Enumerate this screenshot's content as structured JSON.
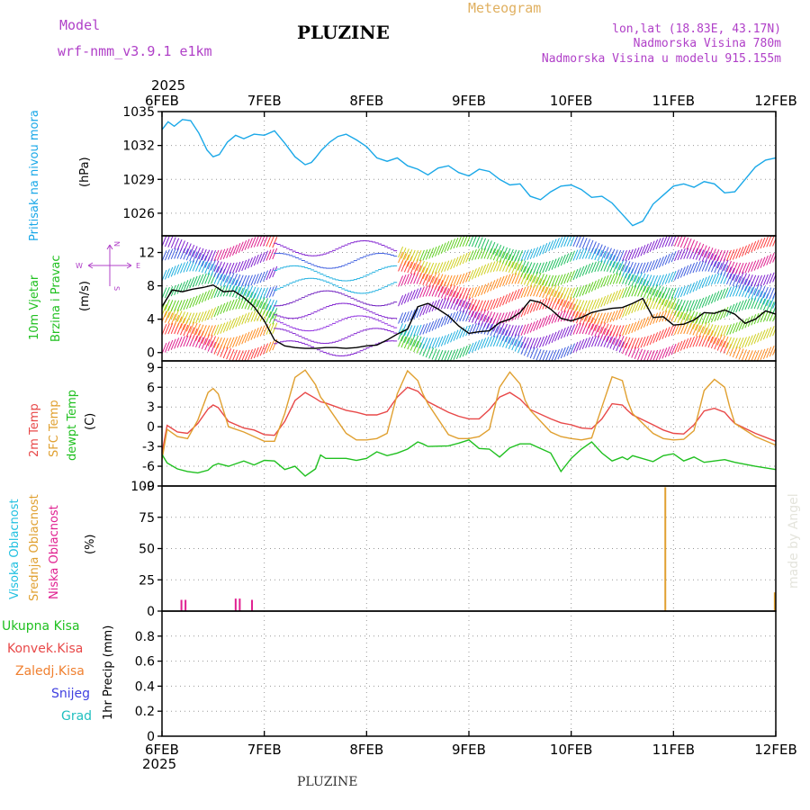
{
  "header": {
    "model_label": "Model",
    "model_name": "wrf-nmm_v3.9.1 e1km",
    "station": "PLUZINE",
    "product": "Meteogram",
    "coords": "lon,lat (18.83E, 43.17N)",
    "elevation": "Nadmorska Visina 780m",
    "model_elevation": "Nadmorska Visina u modelu 915.155m"
  },
  "footer": {
    "station": "PLUZINE"
  },
  "watermark": "made by Angel",
  "time_axis": {
    "year": "2025",
    "days": [
      "6FEB",
      "7FEB",
      "8FEB",
      "9FEB",
      "10FEB",
      "11FEB",
      "12FEB"
    ],
    "day_index": [
      0,
      1,
      2,
      3,
      4,
      5,
      6
    ]
  },
  "panel_labels": {
    "pressure": [
      "Pritisak na nivou mora",
      "(hPa)"
    ],
    "wind": [
      "10m Vjetar",
      "Brzina i Pravac",
      "(m/s)"
    ],
    "wind_dir": {
      "n": "N",
      "s": "S",
      "e": "E",
      "w": "W"
    },
    "temp": [
      "2m Temp",
      "SFC Temp",
      "dewpt Temp",
      "(C)"
    ],
    "cloud": [
      "Visoka Oblacnost",
      "Srednja Oblacnost",
      "Niska Oblacnost",
      "(%)"
    ],
    "precip_legend": [
      "Ukupna Kisa",
      "Konvek.Kisa",
      "Zaledj.Kisa",
      "Snijeg",
      "Grad"
    ],
    "precip_axis": "1hr Precip (mm)"
  },
  "colors": {
    "pressure": "#1aa8e8",
    "wind_speed": "#000000",
    "t2m": "#e84848",
    "tsfc": "#e0a030",
    "dewpoint": "#20c020",
    "high_cloud": "#20c0e0",
    "mid_cloud": "#e0a030",
    "low_cloud": "#e02090",
    "total_rain": "#20c020",
    "conv_rain": "#e84848",
    "freezing_rain": "#f08030",
    "snow": "#4040e0",
    "hail": "#20c0c0",
    "axis_purple": "#b040c8"
  },
  "chart_data": [
    {
      "type": "line",
      "name": "pressure",
      "ylim": [
        1024,
        1035
      ],
      "yticks": [
        1026,
        1029,
        1032,
        1035
      ],
      "x": [
        0,
        0.06,
        0.12,
        0.2,
        0.28,
        0.36,
        0.44,
        0.5,
        0.56,
        0.64,
        0.72,
        0.8,
        0.9,
        1.0,
        1.1,
        1.2,
        1.3,
        1.4,
        1.46,
        1.5,
        1.56,
        1.64,
        1.72,
        1.8,
        1.9,
        2.0,
        2.1,
        2.2,
        2.3,
        2.4,
        2.5,
        2.6,
        2.7,
        2.8,
        2.9,
        3.0,
        3.1,
        3.2,
        3.3,
        3.4,
        3.5,
        3.6,
        3.7,
        3.8,
        3.9,
        4.0,
        4.1,
        4.2,
        4.3,
        4.4,
        4.5,
        4.6,
        4.7,
        4.8,
        4.9,
        5.0,
        5.1,
        5.2,
        5.3,
        5.4,
        5.5,
        5.6,
        5.7,
        5.8,
        5.9,
        6.0
      ],
      "values": [
        1033.4,
        1034.1,
        1033.7,
        1034.3,
        1034.2,
        1033.1,
        1031.6,
        1031.0,
        1031.2,
        1032.3,
        1032.9,
        1032.6,
        1033.0,
        1032.9,
        1033.3,
        1032.2,
        1031.0,
        1030.3,
        1030.5,
        1030.9,
        1031.6,
        1032.3,
        1032.8,
        1033.0,
        1032.5,
        1031.9,
        1030.9,
        1030.6,
        1030.9,
        1030.2,
        1029.9,
        1029.4,
        1030.0,
        1030.2,
        1029.6,
        1029.3,
        1029.9,
        1029.7,
        1029.0,
        1028.5,
        1028.6,
        1027.5,
        1027.2,
        1027.9,
        1028.4,
        1028.5,
        1028.1,
        1027.4,
        1027.5,
        1026.9,
        1025.9,
        1024.9,
        1025.3,
        1026.8,
        1027.6,
        1028.4,
        1028.6,
        1028.3,
        1028.8,
        1028.6,
        1027.8,
        1027.9,
        1029.0,
        1030.1,
        1030.7,
        1030.9
      ]
    },
    {
      "type": "line",
      "name": "wind_speed",
      "ylim": [
        -1,
        14
      ],
      "yticks": [
        0,
        4,
        8,
        12
      ],
      "x": [
        0,
        0.1,
        0.2,
        0.3,
        0.4,
        0.5,
        0.6,
        0.7,
        0.8,
        0.9,
        1.0,
        1.1,
        1.2,
        1.3,
        1.4,
        1.5,
        1.6,
        1.7,
        1.8,
        1.9,
        2.0,
        2.1,
        2.2,
        2.3,
        2.4,
        2.5,
        2.6,
        2.7,
        2.8,
        2.9,
        3.0,
        3.1,
        3.2,
        3.3,
        3.4,
        3.5,
        3.6,
        3.7,
        3.8,
        3.9,
        4.0,
        4.1,
        4.2,
        4.3,
        4.4,
        4.5,
        4.6,
        4.7,
        4.8,
        4.9,
        5.0,
        5.1,
        5.2,
        5.3,
        5.4,
        5.5,
        5.6,
        5.7,
        5.8,
        5.9,
        6.0
      ],
      "values": [
        5.5,
        7.5,
        7.3,
        7.6,
        7.8,
        8.1,
        7.3,
        7.4,
        6.6,
        5.5,
        3.8,
        1.5,
        0.8,
        0.6,
        0.5,
        0.5,
        0.6,
        0.6,
        0.5,
        0.6,
        0.8,
        0.9,
        1.5,
        2.2,
        2.8,
        5.5,
        5.9,
        5.2,
        4.4,
        3.2,
        2.3,
        2.5,
        2.6,
        3.6,
        4.0,
        4.8,
        6.3,
        6.0,
        5.2,
        4.1,
        3.8,
        4.2,
        4.8,
        5.1,
        5.3,
        5.4,
        5.9,
        6.5,
        4.2,
        4.3,
        3.3,
        3.4,
        3.9,
        4.8,
        4.7,
        5.1,
        4.6,
        3.5,
        4.0,
        5.0,
        4.6
      ]
    },
    {
      "type": "line",
      "name": "temperature",
      "ylim": [
        -9,
        10
      ],
      "yticks": [
        -9,
        -6,
        -3,
        0,
        3,
        6,
        9
      ],
      "x": [
        0,
        0.05,
        0.15,
        0.25,
        0.35,
        0.45,
        0.5,
        0.55,
        0.65,
        0.8,
        0.9,
        1.0,
        1.1,
        1.2,
        1.3,
        1.4,
        1.5,
        1.55,
        1.6,
        1.8,
        1.9,
        2.0,
        2.1,
        2.2,
        2.3,
        2.4,
        2.5,
        2.55,
        2.6,
        2.8,
        2.9,
        3.0,
        3.1,
        3.2,
        3.3,
        3.4,
        3.5,
        3.55,
        3.6,
        3.8,
        3.9,
        4.0,
        4.1,
        4.2,
        4.3,
        4.4,
        4.5,
        4.55,
        4.6,
        4.8,
        4.9,
        5.0,
        5.1,
        5.2,
        5.3,
        5.4,
        5.5,
        5.55,
        5.6,
        5.8,
        6.0
      ],
      "series": [
        {
          "name": "2m Temp",
          "values": [
            -4.0,
            0.2,
            -0.8,
            -1.0,
            0.5,
            2.7,
            3.3,
            2.9,
            0.8,
            -0.2,
            -0.5,
            -1.2,
            -1.3,
            0.8,
            4.0,
            5.2,
            4.3,
            3.8,
            3.6,
            2.5,
            2.2,
            1.8,
            1.8,
            2.3,
            4.5,
            6.0,
            5.4,
            4.6,
            3.8,
            2.2,
            1.6,
            1.2,
            1.2,
            2.6,
            4.5,
            5.2,
            4.2,
            3.4,
            2.6,
            1.2,
            0.6,
            0.3,
            -0.2,
            -0.3,
            1.2,
            3.5,
            3.3,
            2.5,
            1.8,
            0.3,
            -0.5,
            -1.0,
            -1.1,
            0.3,
            2.4,
            2.8,
            2.2,
            1.3,
            0.5,
            -1.0,
            -2.2
          ]
        },
        {
          "name": "SFC Temp",
          "values": [
            -5.0,
            -0.4,
            -1.5,
            -1.8,
            1.0,
            5.2,
            5.8,
            5.0,
            0.0,
            -0.8,
            -1.5,
            -2.2,
            -2.2,
            2.0,
            7.5,
            8.6,
            6.4,
            4.5,
            3.5,
            -1.0,
            -2.0,
            -2.0,
            -1.8,
            -1.0,
            5.0,
            8.5,
            7.0,
            5.0,
            3.5,
            -1.2,
            -1.8,
            -1.8,
            -1.5,
            -0.4,
            6.0,
            8.3,
            6.5,
            4.0,
            2.5,
            -0.8,
            -1.5,
            -1.8,
            -2.0,
            -1.7,
            3.0,
            7.6,
            7.0,
            4.0,
            2.0,
            -1.0,
            -1.8,
            -2.0,
            -1.9,
            -0.6,
            5.5,
            7.2,
            6.0,
            3.0,
            0.5,
            -1.5,
            -2.8
          ]
        },
        {
          "name": "dewpt Temp",
          "values": [
            -4.2,
            -5.5,
            -6.4,
            -6.8,
            -7.0,
            -6.6,
            -5.9,
            -5.6,
            -6.0,
            -5.2,
            -5.8,
            -5.1,
            -5.2,
            -6.5,
            -6.0,
            -7.5,
            -6.4,
            -4.3,
            -4.8,
            -4.8,
            -5.1,
            -4.8,
            -3.8,
            -4.4,
            -4.0,
            -3.4,
            -2.3,
            -2.6,
            -3.0,
            -2.9,
            -2.5,
            -2.0,
            -3.3,
            -3.4,
            -4.6,
            -3.2,
            -2.6,
            -2.6,
            -2.6,
            -4.0,
            -6.8,
            -4.8,
            -3.4,
            -2.3,
            -4.0,
            -5.2,
            -4.6,
            -5.0,
            -4.4,
            -5.3,
            -4.4,
            -4.1,
            -5.2,
            -4.6,
            -5.4,
            -5.2,
            -5.0,
            -5.2,
            -5.4,
            -6.0,
            -6.5
          ]
        }
      ]
    },
    {
      "type": "bar",
      "name": "cloud_cover",
      "ylim": [
        0,
        100
      ],
      "yticks": [
        0,
        25,
        50,
        75,
        100
      ],
      "series": [
        {
          "name": "Visoka Oblacnost",
          "x": [],
          "values": []
        },
        {
          "name": "Srednja Oblacnost",
          "x": [
            4.92,
            5.99
          ],
          "values": [
            99,
            15
          ]
        },
        {
          "name": "Niska Oblacnost",
          "x": [
            0.19,
            0.23,
            0.72,
            0.76,
            0.88
          ],
          "values": [
            9,
            9,
            10,
            10,
            9
          ]
        }
      ]
    },
    {
      "type": "bar",
      "name": "precipitation",
      "ylim": [
        0,
        1
      ],
      "yticks": [
        0,
        0.2,
        0.4,
        0.6,
        0.8
      ],
      "values": []
    }
  ]
}
